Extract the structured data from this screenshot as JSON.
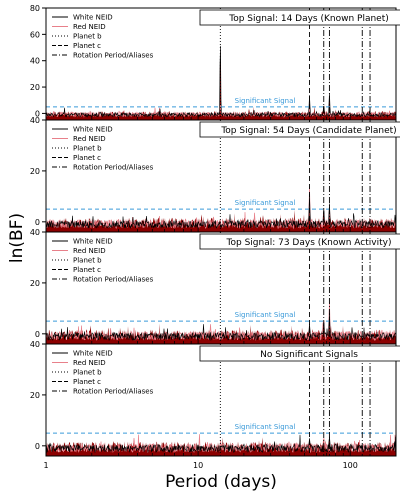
{
  "figure": {
    "ylabel": "ln(BF)",
    "xlabel": "Period (days)",
    "xlim": [
      1,
      200
    ],
    "x_scale": "log",
    "x_ticks": [
      1,
      10,
      100
    ],
    "x_tick_labels": [
      "1",
      "10",
      "100"
    ]
  },
  "legend_entries": [
    "White NEID",
    "Red NEID",
    "Planet b",
    "Planet c",
    "Rotation Period/Aliases"
  ],
  "significance": {
    "label": "Significant Signal",
    "value": 5
  },
  "reference_lines": {
    "planet_b": 14,
    "planet_c": 54,
    "rotation_aliases": [
      67,
      73,
      120,
      135
    ]
  },
  "colors": {
    "white": "#000000",
    "red": "#e8808a",
    "combined": "#8b0000",
    "significant": "#3a9ad9"
  },
  "chart_data": [
    {
      "type": "line",
      "title": "Top Signal: 14 Days (Known Planet)",
      "ylim": [
        -5,
        80
      ],
      "y_ticks": [
        0,
        20,
        40,
        60,
        80
      ],
      "series": [
        {
          "name": "White NEID",
          "peaks": [
            [
              14,
              65
            ],
            [
              54,
              14
            ],
            [
              73,
              17
            ],
            [
              67,
              8
            ]
          ]
        },
        {
          "name": "Red NEID",
          "peaks": [
            [
              14,
              8
            ],
            [
              54,
              4
            ]
          ]
        }
      ]
    },
    {
      "type": "line",
      "title": "Top Signal: 54 Days (Candidate Planet)",
      "ylim": [
        -4,
        40
      ],
      "y_ticks": [
        0,
        20,
        40
      ],
      "series": [
        {
          "name": "White NEID",
          "peaks": [
            [
              54,
              11
            ],
            [
              73,
              8
            ],
            [
              67,
              6
            ]
          ]
        },
        {
          "name": "Red NEID",
          "peaks": [
            [
              54,
              14
            ],
            [
              73,
              6
            ]
          ]
        }
      ]
    },
    {
      "type": "line",
      "title": "Top Signal: 73 Days (Known Activity)",
      "ylim": [
        -4,
        40
      ],
      "y_ticks": [
        0,
        20,
        40
      ],
      "series": [
        {
          "name": "White NEID",
          "peaks": [
            [
              73,
              9
            ],
            [
              67,
              6
            ],
            [
              54,
              4
            ]
          ]
        },
        {
          "name": "Red NEID",
          "peaks": [
            [
              73,
              14
            ],
            [
              67,
              7
            ]
          ]
        }
      ]
    },
    {
      "type": "line",
      "title": "No Significant Signals",
      "ylim": [
        -4,
        40
      ],
      "y_ticks": [
        0,
        20,
        40
      ],
      "series": [
        {
          "name": "White NEID",
          "peaks": [
            [
              73,
              4
            ],
            [
              54,
              3
            ]
          ]
        },
        {
          "name": "Red NEID",
          "peaks": [
            [
              67,
              4
            ]
          ]
        }
      ]
    }
  ]
}
